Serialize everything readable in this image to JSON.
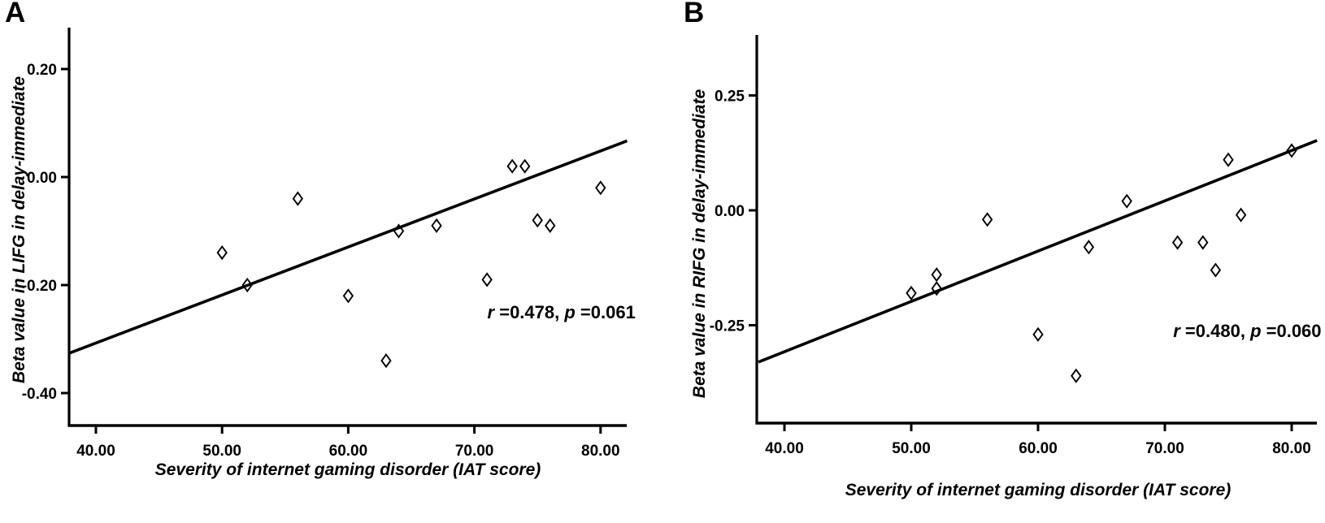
{
  "figure": {
    "background": "#ffffff",
    "ink_color": "#000000"
  },
  "chart_data": [
    {
      "id": "panel_a",
      "type": "scatter",
      "panel_label": "A",
      "xlabel": "Severity of internet gaming disorder (IAT score)",
      "ylabel": "Beta value in LIFG in delay-immediate",
      "marker": "open-diamond",
      "grid": false,
      "legend": "none",
      "xlim": [
        37.9,
        82.1
      ],
      "ylim": [
        -0.46,
        0.24
      ],
      "x_ticks": [
        {
          "value": 40,
          "label": "40.00"
        },
        {
          "value": 50,
          "label": "50.00"
        },
        {
          "value": 60,
          "label": "60.00"
        },
        {
          "value": 70,
          "label": "70.00"
        },
        {
          "value": 80,
          "label": "80.00"
        }
      ],
      "y_ticks": [
        {
          "value": 0.2,
          "label": "0.20"
        },
        {
          "value": 0.0,
          "label": "0.00"
        },
        {
          "value": -0.2,
          "label": "-0.20"
        },
        {
          "value": -0.4,
          "label": "-0.40"
        }
      ],
      "points": [
        {
          "x": 50,
          "y": -0.14
        },
        {
          "x": 52,
          "y": -0.2
        },
        {
          "x": 56,
          "y": -0.04
        },
        {
          "x": 60,
          "y": -0.22
        },
        {
          "x": 63,
          "y": -0.34
        },
        {
          "x": 64,
          "y": -0.1
        },
        {
          "x": 67,
          "y": -0.09
        },
        {
          "x": 71,
          "y": -0.19
        },
        {
          "x": 73,
          "y": 0.02
        },
        {
          "x": 74,
          "y": 0.02
        },
        {
          "x": 75,
          "y": -0.08
        },
        {
          "x": 76,
          "y": -0.09
        },
        {
          "x": 80,
          "y": -0.02
        }
      ],
      "regression_line": {
        "x1": 37.9,
        "y1": -0.326,
        "x2": 82.1,
        "y2": 0.067
      },
      "annotation": {
        "text": "r =0.478, p =0.061",
        "parts": [
          {
            "text": "r",
            "italic": true
          },
          {
            "text": " =0.478, ",
            "italic": false
          },
          {
            "text": "p",
            "italic": true
          },
          {
            "text": " =0.061",
            "italic": false
          }
        ],
        "anchor": {
          "x": 76.9,
          "y": -0.262
        }
      }
    },
    {
      "id": "panel_b",
      "type": "scatter",
      "panel_label": "B",
      "xlabel": "Severity of internet gaming disorder (IAT score)",
      "ylabel": "Beta value in RIFG in delay-immediate",
      "marker": "open-diamond",
      "grid": false,
      "legend": "none",
      "xlim": [
        37.9,
        82.0
      ],
      "ylim": [
        -0.46,
        0.38
      ],
      "x_ticks": [
        {
          "value": 40,
          "label": "40.00"
        },
        {
          "value": 50,
          "label": "50.00"
        },
        {
          "value": 60,
          "label": "60.00"
        },
        {
          "value": 70,
          "label": "70.00"
        },
        {
          "value": 80,
          "label": "80.00"
        }
      ],
      "y_ticks": [
        {
          "value": 0.25,
          "label": "0.25"
        },
        {
          "value": 0.0,
          "label": "0.00"
        },
        {
          "value": -0.25,
          "label": "-0.25"
        }
      ],
      "points": [
        {
          "x": 50,
          "y": -0.18
        },
        {
          "x": 52,
          "y": -0.14
        },
        {
          "x": 52,
          "y": -0.17
        },
        {
          "x": 56,
          "y": -0.02
        },
        {
          "x": 60,
          "y": -0.27
        },
        {
          "x": 63,
          "y": -0.36
        },
        {
          "x": 64,
          "y": -0.08
        },
        {
          "x": 67,
          "y": 0.02
        },
        {
          "x": 71,
          "y": -0.07
        },
        {
          "x": 73,
          "y": -0.07
        },
        {
          "x": 74,
          "y": -0.13
        },
        {
          "x": 75,
          "y": 0.11
        },
        {
          "x": 76,
          "y": -0.01
        },
        {
          "x": 80,
          "y": 0.13
        }
      ],
      "regression_line": {
        "x1": 37.95,
        "y1": -0.33,
        "x2": 82.0,
        "y2": 0.152
      },
      "annotation": {
        "text": "r =0.480, p =0.060",
        "parts": [
          {
            "text": "r",
            "italic": true
          },
          {
            "text": " =0.480, ",
            "italic": false
          },
          {
            "text": "p",
            "italic": true
          },
          {
            "text": " =0.060",
            "italic": false
          }
        ],
        "anchor": {
          "x": 76.5,
          "y": -0.276
        }
      }
    }
  ]
}
